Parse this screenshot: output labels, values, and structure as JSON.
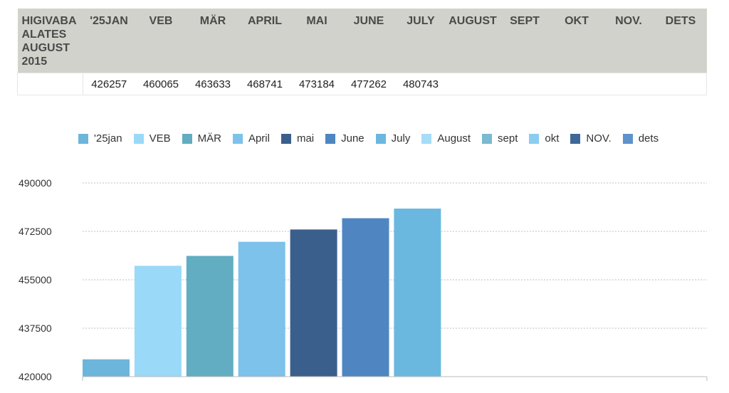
{
  "table": {
    "corner_header": [
      "HIGIVABA",
      "ALATES",
      "AUGUST",
      "2015"
    ],
    "months": [
      "'25JAN",
      "VEB",
      "MÄR",
      "APRIL",
      "MAI",
      "JUNE",
      "JULY",
      "AUGUST",
      "SEPT",
      "OKT",
      "NOV.",
      "DETS"
    ],
    "row_label": "",
    "values": [
      "426257",
      "460065",
      "463633",
      "468741",
      "473184",
      "477262",
      "480743",
      "",
      "",
      "",
      "",
      ""
    ]
  },
  "chart_data": {
    "type": "bar",
    "categories": [
      "'25jan",
      "VEB",
      "MÄR",
      "April",
      "mai",
      "June",
      "July",
      "August",
      "sept",
      "okt",
      "NOV.",
      "dets"
    ],
    "series": [
      {
        "name": "'25jan",
        "value": 426257,
        "color": "#6cb5db"
      },
      {
        "name": "VEB",
        "value": 460065,
        "color": "#9ad9f8"
      },
      {
        "name": "MÄR",
        "value": 463633,
        "color": "#62adc2"
      },
      {
        "name": "April",
        "value": 468741,
        "color": "#7cc2ea"
      },
      {
        "name": "mai",
        "value": 473184,
        "color": "#3b5f8c"
      },
      {
        "name": "June",
        "value": 477262,
        "color": "#4f86c2"
      },
      {
        "name": "July",
        "value": 480743,
        "color": "#6ab8df"
      },
      {
        "name": "August",
        "value": null,
        "color": "#a6dcf7"
      },
      {
        "name": "sept",
        "value": null,
        "color": "#7bbad0"
      },
      {
        "name": "okt",
        "value": null,
        "color": "#8acdee"
      },
      {
        "name": "NOV.",
        "value": null,
        "color": "#3f6898"
      },
      {
        "name": "dets",
        "value": null,
        "color": "#5d92cc"
      }
    ],
    "yticks": [
      "420000",
      "437500",
      "455000",
      "472500",
      "490000"
    ],
    "ylim": [
      420000,
      490000
    ],
    "grid": true,
    "legend_position": "top"
  }
}
